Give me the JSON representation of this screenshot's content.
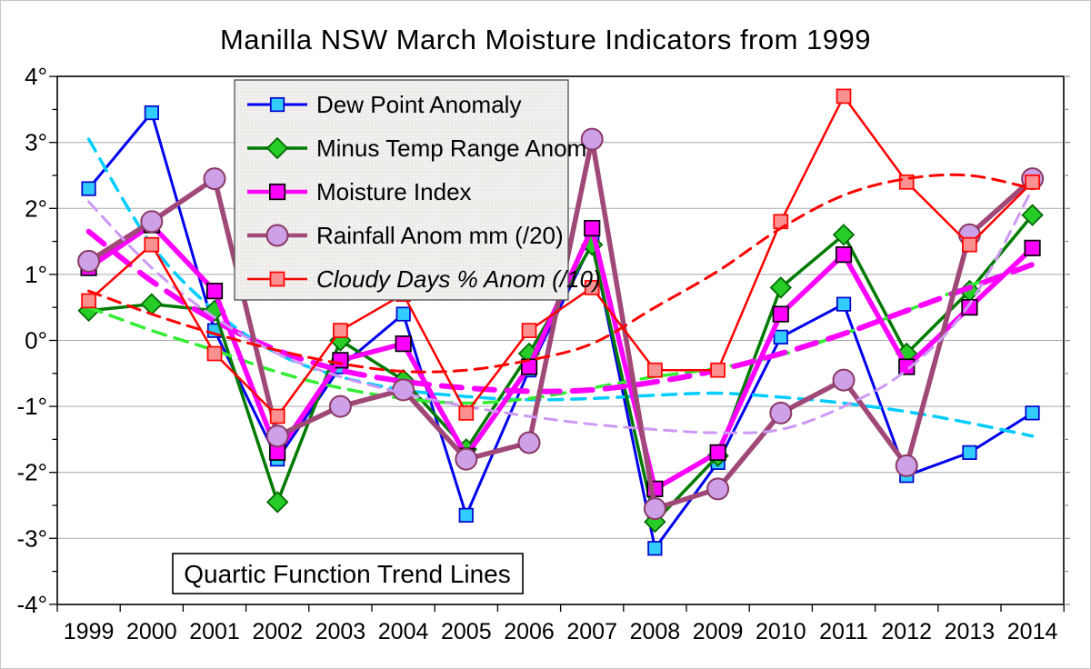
{
  "chart_data": {
    "type": "line",
    "title": "Manilla NSW March Moisture Indicators from 1999",
    "annotation": "Quartic Function Trend Lines",
    "x_categories": [
      "1999",
      "2000",
      "2001",
      "2002",
      "2003",
      "2004",
      "2005",
      "2006",
      "2007",
      "2008",
      "2009",
      "2010",
      "2011",
      "2012",
      "2013",
      "2014"
    ],
    "y_axis": {
      "min": -4,
      "max": 4,
      "tick_step": 1,
      "minor_tick_step": 0.5,
      "labels": [
        "4°",
        "3°",
        "2°",
        "1°",
        "0°",
        "-1°",
        "-2°",
        "-3°",
        "-4°"
      ],
      "label_values": [
        4,
        3,
        2,
        1,
        0,
        -1,
        -2,
        -3,
        -4
      ]
    },
    "legend": {
      "position": "top-left"
    },
    "grid": true,
    "series": [
      {
        "name": "Dew Point Anomaly",
        "legend_italic": false,
        "line_color": "#0000EE",
        "line_width": 3,
        "marker": {
          "shape": "square",
          "fill": "#33CCFF",
          "stroke": "#0000CC",
          "size": 14.5
        },
        "values": [
          2.3,
          3.45,
          0.15,
          -1.8,
          -0.4,
          0.4,
          -2.65,
          -0.45,
          1.48,
          -3.15,
          -1.85,
          0.05,
          0.55,
          -2.05,
          -1.7,
          -1.1
        ],
        "trend": {
          "color": "#00CCFF",
          "width": 3.5,
          "dash": "15 10",
          "values": [
            3.05,
            1.45,
            0.45,
            -0.2,
            -0.55,
            -0.75,
            -0.85,
            -0.9,
            -0.88,
            -0.83,
            -0.8,
            -0.86,
            -0.95,
            -1.08,
            -1.25,
            -1.45
          ]
        }
      },
      {
        "name": "Minus Temp Range Anom",
        "legend_italic": false,
        "line_color": "#007A00",
        "line_width": 3.5,
        "marker": {
          "shape": "diamond",
          "fill": "#28CC28",
          "stroke": "#006600",
          "size": 22
        },
        "values": [
          0.45,
          0.55,
          0.45,
          -2.45,
          0.0,
          -0.6,
          -1.65,
          -0.2,
          1.45,
          -2.75,
          -1.75,
          0.8,
          1.6,
          -0.2,
          0.75,
          1.9
        ],
        "trend": {
          "color": "#33EE33",
          "width": 3.5,
          "dash": "15 10",
          "values": [
            0.5,
            0.15,
            -0.15,
            -0.48,
            -0.72,
            -0.88,
            -0.95,
            -0.88,
            -0.72,
            -0.55,
            -0.42,
            -0.22,
            0.1,
            0.45,
            0.83,
            1.15
          ]
        }
      },
      {
        "name": "Moisture Index",
        "legend_italic": false,
        "line_color": "#FF00FF",
        "line_width": 5.5,
        "marker": {
          "shape": "square",
          "fill": "#FF00FF",
          "stroke": "#000000",
          "size": 16.5
        },
        "values": [
          1.1,
          1.75,
          0.75,
          -1.7,
          -0.3,
          -0.05,
          -1.75,
          -0.4,
          1.7,
          -2.25,
          -1.7,
          0.4,
          1.3,
          -0.4,
          0.5,
          1.4
        ],
        "trend": {
          "color": "#FF00FF",
          "width": 6,
          "dash": "22 14",
          "values": [
            1.65,
            0.9,
            0.3,
            -0.15,
            -0.45,
            -0.62,
            -0.72,
            -0.77,
            -0.75,
            -0.63,
            -0.45,
            -0.2,
            0.1,
            0.45,
            0.8,
            1.15
          ]
        }
      },
      {
        "name": "Rainfall Anom mm (/20)",
        "legend_italic": false,
        "line_color": "#A04878",
        "line_width": 5.5,
        "marker": {
          "shape": "circle",
          "fill": "#CDA0E8",
          "stroke": "#8A3A64",
          "size": 23
        },
        "values": [
          1.2,
          1.8,
          2.45,
          -1.45,
          -1.0,
          -0.75,
          -1.8,
          -1.55,
          3.05,
          -2.55,
          -2.25,
          -1.1,
          -0.6,
          -1.9,
          1.6,
          2.45
        ],
        "trend": {
          "color": "#CC99F5",
          "width": 3,
          "dash": "13 9",
          "values": [
            2.1,
            1.1,
            0.35,
            -0.2,
            -0.55,
            -0.8,
            -1.0,
            -1.15,
            -1.27,
            -1.35,
            -1.4,
            -1.35,
            -1.0,
            -0.45,
            0.55,
            2.3
          ]
        }
      },
      {
        "name": "Cloudy Days % Anom (/10)",
        "legend_italic": true,
        "line_color": "#FF0000",
        "line_width": 2.5,
        "marker": {
          "shape": "square",
          "fill": "#FB9090",
          "stroke": "#FF0000",
          "size": 15
        },
        "values": [
          0.6,
          1.45,
          -0.2,
          -1.15,
          0.15,
          0.7,
          -1.1,
          0.15,
          0.8,
          -0.45,
          -0.45,
          1.8,
          3.7,
          2.4,
          1.45,
          2.4
        ],
        "trend": {
          "color": "#FF0000",
          "width": 3,
          "dash": "14 9",
          "values": [
            0.75,
            0.4,
            0.1,
            -0.15,
            -0.35,
            -0.47,
            -0.45,
            -0.3,
            -0.05,
            0.5,
            1.05,
            1.7,
            2.2,
            2.45,
            2.5,
            2.3
          ]
        }
      }
    ],
    "colors": {
      "frame": "#000000",
      "gridline": "#A8A8A8",
      "legend_fill": "#F2F0EE",
      "legend_dot": "#DCD8D4",
      "legend_border": "#4D4D4D",
      "annotation_fill": "#FFFFFF",
      "right_tick": "#888888"
    }
  }
}
